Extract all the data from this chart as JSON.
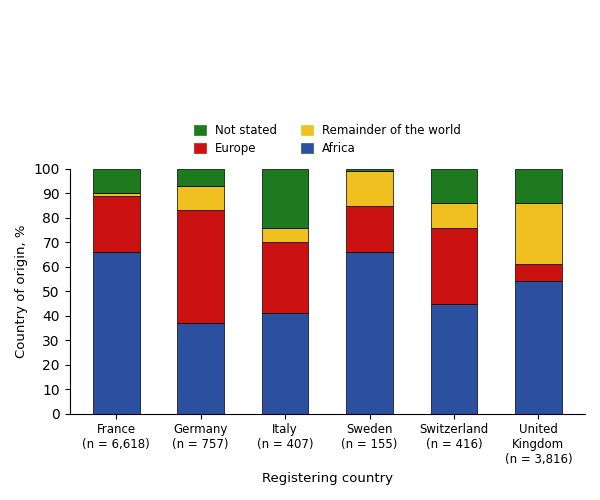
{
  "categories": [
    "France\n(n = 6,618)",
    "Germany\n(n = 757)",
    "Italy\n(n = 407)",
    "Sweden\n(n = 155)",
    "Switzerland\n(n = 416)",
    "United\nKingdom\n(n = 3,816)"
  ],
  "africa": [
    66,
    37,
    41,
    66,
    45,
    54
  ],
  "europe": [
    23,
    46,
    29,
    19,
    31,
    7
  ],
  "remainder": [
    1,
    10,
    6,
    14,
    10,
    25
  ],
  "not_stated": [
    10,
    7,
    24,
    1,
    14,
    14
  ],
  "colors": {
    "africa": "#2b50a0",
    "europe": "#cc1111",
    "remainder": "#f0c020",
    "not_stated": "#1e7a1e"
  },
  "ylabel": "Country of origin, %",
  "xlabel": "Registering country",
  "ylim": [
    0,
    100
  ],
  "yticks": [
    0,
    10,
    20,
    30,
    40,
    50,
    60,
    70,
    80,
    90,
    100
  ],
  "bar_width": 0.55,
  "figsize": [
    6.0,
    5.0
  ],
  "dpi": 100
}
